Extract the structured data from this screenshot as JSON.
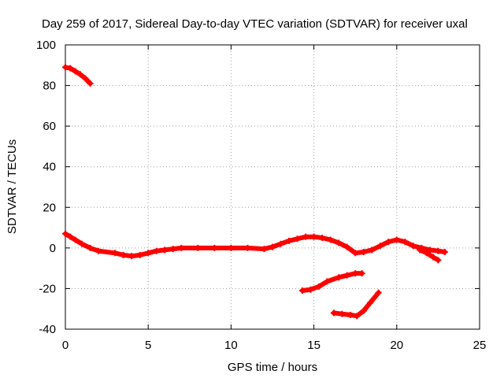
{
  "chart_data": {
    "type": "scatter",
    "title": "Day 259 of 2017, Sidereal Day-to-day VTEC variation (SDTVAR) for receiver uxal",
    "xlabel": "GPS time / hours",
    "ylabel": "SDTVAR / TECUs",
    "xlim": [
      0,
      25
    ],
    "ylim": [
      -40,
      100
    ],
    "xticks": [
      "0",
      "5",
      "10",
      "15",
      "20",
      "25"
    ],
    "yticks": [
      "-40",
      "-20",
      "0",
      "20",
      "40",
      "60",
      "80",
      "100"
    ],
    "grid": true,
    "series_color": "#ff0000",
    "series": [
      {
        "name": "arc-1",
        "x": [
          0.0,
          0.3,
          0.6,
          0.9,
          1.2,
          1.5
        ],
        "y": [
          89,
          88.5,
          87,
          85.5,
          83.5,
          81
        ]
      },
      {
        "name": "arc-2",
        "x": [
          0.0,
          0.3,
          0.6,
          1.0,
          1.5,
          2.0,
          3.0,
          3.5,
          4.0,
          4.5,
          5.0,
          5.5,
          6.0,
          6.5,
          7.0,
          8.0,
          9.0,
          10.0,
          11.0,
          12.0,
          12.5,
          13.0,
          13.5,
          14.0,
          14.5,
          15.0,
          15.5,
          16.0,
          16.5,
          17.0,
          17.5,
          18.0,
          18.5,
          19.0,
          19.5,
          20.0,
          20.5,
          21.0,
          21.5,
          22.0,
          22.5,
          22.9
        ],
        "y": [
          7,
          5.5,
          4,
          2,
          0,
          -1.5,
          -2.5,
          -3.5,
          -4,
          -3.5,
          -2.5,
          -1.5,
          -1,
          -0.5,
          0,
          0,
          0,
          0,
          0,
          -0.5,
          0.5,
          2,
          3.5,
          4.5,
          5.5,
          5.5,
          5,
          4,
          2.5,
          0.5,
          -2.5,
          -2,
          -1,
          1,
          3,
          4,
          3,
          1,
          0,
          -1,
          -1.5,
          -2
        ]
      },
      {
        "name": "arc-3",
        "x": [
          21.4,
          21.8,
          22.2,
          22.5
        ],
        "y": [
          -1,
          -2.5,
          -4.5,
          -6
        ]
      },
      {
        "name": "arc-4",
        "x": [
          14.3,
          14.8,
          15.3,
          15.8,
          16.5,
          17.0,
          17.5,
          17.9
        ],
        "y": [
          -21,
          -20.5,
          -19,
          -16.5,
          -14.5,
          -13.5,
          -12.5,
          -12.5
        ]
      },
      {
        "name": "arc-5",
        "x": [
          16.2,
          16.7,
          17.2,
          17.6,
          18.0,
          18.4,
          18.9
        ],
        "y": [
          -32,
          -32.5,
          -33,
          -33.5,
          -31,
          -27,
          -22
        ]
      }
    ]
  }
}
